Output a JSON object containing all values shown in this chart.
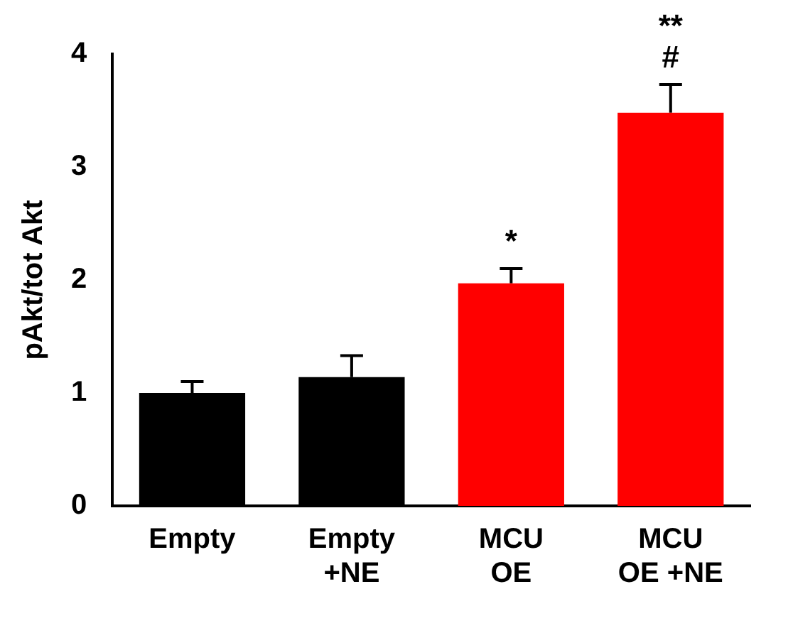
{
  "chart_data": {
    "type": "bar",
    "ylabel": "pAkt/tot Akt",
    "categories": [
      "Empty",
      "Empty\n+NE",
      "MCU\nOE",
      "MCU\nOE +NE"
    ],
    "values": [
      1.0,
      1.14,
      1.97,
      3.48
    ],
    "colors": [
      "#000000",
      "#000000",
      "#ff0000",
      "#ff0000"
    ],
    "errors": [
      [
        1.0,
        1.1
      ],
      [
        1.14,
        1.33
      ],
      [
        1.97,
        2.1
      ],
      [
        3.48,
        3.73
      ]
    ],
    "ylim": [
      0,
      4
    ],
    "yticks": [
      0,
      1,
      2,
      3,
      4
    ],
    "grid": false,
    "legend": false,
    "annotations": [
      {
        "text": "*",
        "x": "MCU\nOE",
        "y": 2.1
      },
      {
        "text": "#",
        "x": "MCU\nOE +NE",
        "y": 3.73
      },
      {
        "text": "**",
        "x": "MCU\nOE +NE",
        "y": 3.73
      }
    ]
  }
}
